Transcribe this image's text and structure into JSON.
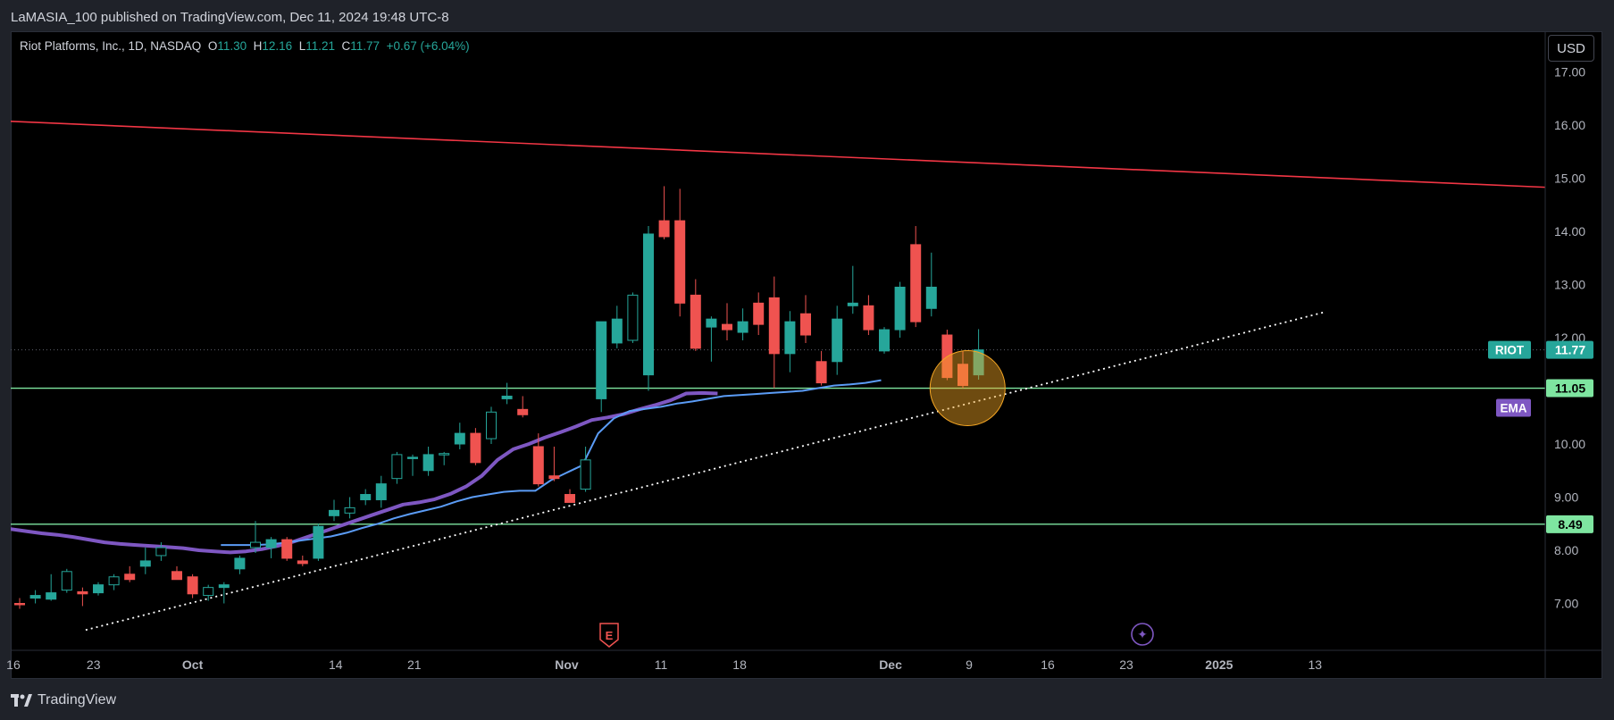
{
  "header": {
    "published_text": "LaMASIA_100 published on TradingView.com, Dec 11, 2024 19:48 UTC-8"
  },
  "legend": {
    "symbol_desc": "Riot Platforms, Inc., 1D, NASDAQ",
    "open_label": "O",
    "open": "11.30",
    "high_label": "H",
    "high": "12.16",
    "low_label": "L",
    "low": "11.21",
    "close_label": "C",
    "close": "11.77",
    "change": "+0.67 (+6.04%)"
  },
  "currency": "USD",
  "footer": {
    "brand": "TradingView"
  },
  "colors": {
    "up": "#26a69a",
    "down": "#ef5350",
    "resistance": "#f23645",
    "support": "#7ee5a0",
    "ema_fast": "#5b9cf6",
    "ema_slow": "#7e57c2",
    "trend": "#ffffff",
    "highlight": "#f5a623",
    "riot_badge": "#26a69a",
    "ema_badge": "#7e57c2"
  },
  "chart_data": {
    "type": "candlestick",
    "symbol": "RIOT",
    "price_axis": {
      "ticks": [
        "7.00",
        "8.00",
        "9.00",
        "10.00",
        "11.00",
        "12.00",
        "13.00",
        "14.00",
        "15.00",
        "16.00",
        "17.00"
      ]
    },
    "time_axis": {
      "labels": [
        "16",
        "23",
        "Oct",
        "14",
        "21",
        "Nov",
        "11",
        "18",
        "Dec",
        "9",
        "16",
        "23",
        "2025",
        "13"
      ]
    },
    "candles": [
      {
        "o": 7.0,
        "h": 7.1,
        "l": 6.9,
        "c": 6.98
      },
      {
        "o": 7.1,
        "h": 7.25,
        "l": 7.0,
        "c": 7.15
      },
      {
        "o": 7.08,
        "h": 7.55,
        "l": 7.05,
        "c": 7.2
      },
      {
        "o": 7.25,
        "h": 7.65,
        "l": 7.2,
        "c": 7.6
      },
      {
        "o": 7.22,
        "h": 7.3,
        "l": 6.95,
        "c": 7.18
      },
      {
        "o": 7.2,
        "h": 7.4,
        "l": 7.15,
        "c": 7.35
      },
      {
        "o": 7.35,
        "h": 7.55,
        "l": 7.25,
        "c": 7.5
      },
      {
        "o": 7.55,
        "h": 7.7,
        "l": 7.4,
        "c": 7.45
      },
      {
        "o": 7.7,
        "h": 8.05,
        "l": 7.55,
        "c": 7.8
      },
      {
        "o": 7.9,
        "h": 8.15,
        "l": 7.8,
        "c": 8.05
      },
      {
        "o": 7.6,
        "h": 7.7,
        "l": 7.45,
        "c": 7.45
      },
      {
        "o": 7.5,
        "h": 7.55,
        "l": 7.1,
        "c": 7.18
      },
      {
        "o": 7.15,
        "h": 7.35,
        "l": 7.05,
        "c": 7.3
      },
      {
        "o": 7.3,
        "h": 7.4,
        "l": 7.0,
        "c": 7.35
      },
      {
        "o": 7.65,
        "h": 7.9,
        "l": 7.55,
        "c": 7.85
      },
      {
        "o": 8.05,
        "h": 8.55,
        "l": 7.95,
        "c": 8.15
      },
      {
        "o": 8.05,
        "h": 8.25,
        "l": 7.85,
        "c": 8.2
      },
      {
        "o": 8.2,
        "h": 8.25,
        "l": 7.8,
        "c": 7.85
      },
      {
        "o": 7.8,
        "h": 7.9,
        "l": 7.7,
        "c": 7.75
      },
      {
        "o": 7.85,
        "h": 8.5,
        "l": 7.8,
        "c": 8.45
      },
      {
        "o": 8.65,
        "h": 8.95,
        "l": 8.55,
        "c": 8.75
      },
      {
        "o": 8.7,
        "h": 9.0,
        "l": 8.6,
        "c": 8.8
      },
      {
        "o": 8.95,
        "h": 9.15,
        "l": 8.85,
        "c": 9.05
      },
      {
        "o": 8.95,
        "h": 9.4,
        "l": 8.8,
        "c": 9.25
      },
      {
        "o": 9.35,
        "h": 9.85,
        "l": 9.25,
        "c": 9.8
      },
      {
        "o": 9.75,
        "h": 9.8,
        "l": 9.4,
        "c": 9.75
      },
      {
        "o": 9.5,
        "h": 9.95,
        "l": 9.4,
        "c": 9.8
      },
      {
        "o": 9.8,
        "h": 9.85,
        "l": 9.6,
        "c": 9.82
      },
      {
        "o": 10.0,
        "h": 10.4,
        "l": 9.9,
        "c": 10.2
      },
      {
        "o": 10.2,
        "h": 10.3,
        "l": 9.6,
        "c": 9.65
      },
      {
        "o": 10.1,
        "h": 10.7,
        "l": 10.0,
        "c": 10.6
      },
      {
        "o": 10.85,
        "h": 11.15,
        "l": 10.75,
        "c": 10.9
      },
      {
        "o": 10.65,
        "h": 10.9,
        "l": 10.5,
        "c": 10.55
      },
      {
        "o": 9.95,
        "h": 10.2,
        "l": 9.2,
        "c": 9.25
      },
      {
        "o": 9.4,
        "h": 9.95,
        "l": 9.3,
        "c": 9.35
      },
      {
        "o": 9.05,
        "h": 9.15,
        "l": 8.9,
        "c": 8.9
      },
      {
        "o": 9.15,
        "h": 9.95,
        "l": 9.1,
        "c": 9.7
      },
      {
        "o": 10.85,
        "h": 12.3,
        "l": 10.6,
        "c": 12.3
      },
      {
        "o": 11.9,
        "h": 12.6,
        "l": 11.8,
        "c": 12.35
      },
      {
        "o": 11.95,
        "h": 12.85,
        "l": 11.9,
        "c": 12.8
      },
      {
        "o": 11.3,
        "h": 14.1,
        "l": 11.0,
        "c": 13.95
      },
      {
        "o": 14.2,
        "h": 14.85,
        "l": 13.85,
        "c": 13.9
      },
      {
        "o": 14.2,
        "h": 14.8,
        "l": 12.4,
        "c": 12.65
      },
      {
        "o": 12.8,
        "h": 13.1,
        "l": 11.75,
        "c": 11.8
      },
      {
        "o": 12.2,
        "h": 12.4,
        "l": 11.55,
        "c": 12.35
      },
      {
        "o": 12.25,
        "h": 12.65,
        "l": 11.95,
        "c": 12.15
      },
      {
        "o": 12.1,
        "h": 12.55,
        "l": 11.95,
        "c": 12.3
      },
      {
        "o": 12.65,
        "h": 12.85,
        "l": 12.05,
        "c": 12.25
      },
      {
        "o": 12.75,
        "h": 13.15,
        "l": 11.05,
        "c": 11.7
      },
      {
        "o": 11.7,
        "h": 12.5,
        "l": 11.35,
        "c": 12.3
      },
      {
        "o": 12.45,
        "h": 12.8,
        "l": 11.9,
        "c": 12.05
      },
      {
        "o": 11.55,
        "h": 11.75,
        "l": 11.1,
        "c": 11.15
      },
      {
        "o": 11.55,
        "h": 12.6,
        "l": 11.3,
        "c": 12.35
      },
      {
        "o": 12.6,
        "h": 13.35,
        "l": 12.45,
        "c": 12.65
      },
      {
        "o": 12.6,
        "h": 12.8,
        "l": 12.05,
        "c": 12.15
      },
      {
        "o": 11.75,
        "h": 12.2,
        "l": 11.7,
        "c": 12.15
      },
      {
        "o": 12.15,
        "h": 13.05,
        "l": 12.0,
        "c": 12.95
      },
      {
        "o": 13.75,
        "h": 14.1,
        "l": 12.2,
        "c": 12.3
      },
      {
        "o": 12.55,
        "h": 13.6,
        "l": 12.4,
        "c": 12.95
      },
      {
        "o": 12.05,
        "h": 12.15,
        "l": 11.2,
        "c": 11.25
      },
      {
        "o": 11.5,
        "h": 11.75,
        "l": 11.05,
        "c": 11.1
      },
      {
        "o": 11.3,
        "h": 12.16,
        "l": 11.21,
        "c": 11.77
      }
    ],
    "ema_fast": [
      8.1,
      8.1,
      8.1,
      8.11,
      8.14,
      8.18,
      8.22,
      8.26,
      8.33,
      8.42,
      8.5,
      8.6,
      8.68,
      8.75,
      8.82,
      8.92,
      9.0,
      9.05,
      9.1,
      9.12,
      9.12,
      9.32,
      9.46,
      9.6,
      10.2,
      10.48,
      10.62,
      10.66,
      10.7,
      10.76,
      10.8,
      10.85,
      10.9,
      10.92,
      10.94,
      10.96,
      10.98,
      11.0,
      11.05,
      11.1,
      11.12,
      11.15,
      11.2
    ],
    "ema_slow": [
      8.4,
      8.36,
      8.32,
      8.29,
      8.25,
      8.2,
      8.15,
      8.12,
      8.1,
      8.08,
      8.06,
      8.04,
      8.0,
      7.98,
      7.96,
      7.98,
      8.02,
      8.08,
      8.16,
      8.26,
      8.36,
      8.46,
      8.56,
      8.66,
      8.76,
      8.86,
      8.9,
      8.96,
      9.06,
      9.2,
      9.4,
      9.7,
      9.9,
      10.0,
      10.12,
      10.22,
      10.33,
      10.45,
      10.5,
      10.56,
      10.65,
      10.73,
      10.82,
      10.95,
      10.96,
      10.95
    ],
    "support_levels": [
      11.05,
      8.49
    ],
    "last_price": 11.77,
    "badges": {
      "riot_label": "RIOT",
      "riot_value": "11.77",
      "ema_label": "EMA",
      "support_a": "11.05",
      "support_b": "8.49"
    },
    "event_marker": "E",
    "event_marker_2": "✦"
  }
}
